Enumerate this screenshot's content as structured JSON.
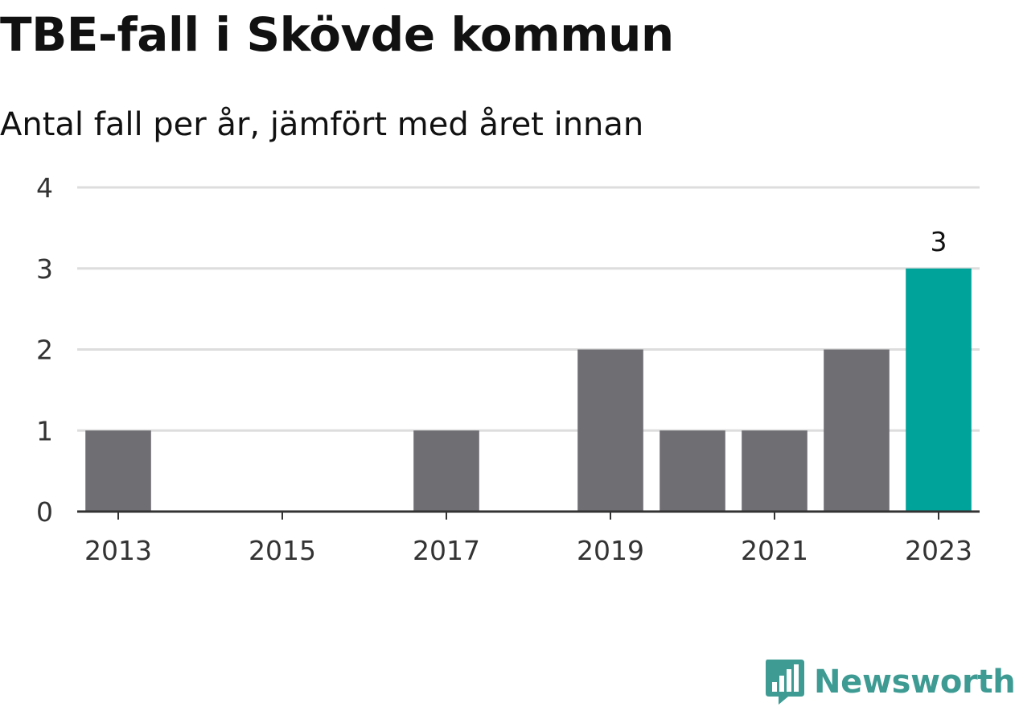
{
  "chart_data": {
    "type": "bar",
    "title": "TBE-fall i Skövde kommun",
    "subtitle": "Antal fall per år, jämfört med året innan",
    "categories": [
      "2013",
      "2014",
      "2015",
      "2016",
      "2017",
      "2018",
      "2019",
      "2020",
      "2021",
      "2022",
      "2023"
    ],
    "values": [
      1,
      0,
      0,
      0,
      1,
      0,
      2,
      1,
      1,
      2,
      3
    ],
    "x_tick_labels": [
      "2013",
      "2015",
      "2017",
      "2019",
      "2021",
      "2023"
    ],
    "y_ticks": [
      0,
      1,
      2,
      3,
      4
    ],
    "ylim": [
      0,
      4
    ],
    "data_labels": [
      {
        "category": "2023",
        "text": "3"
      }
    ],
    "highlight_category": "2023",
    "grid": true,
    "legend": "none",
    "colors": {
      "bar": "#6f6e73",
      "highlight": "#00a39a",
      "grid": "#dddddd",
      "axis": "#333333"
    }
  },
  "brand": {
    "name": "Newsworthy",
    "icon": "newsworthy-logo-icon",
    "color": "#3d9b93"
  }
}
